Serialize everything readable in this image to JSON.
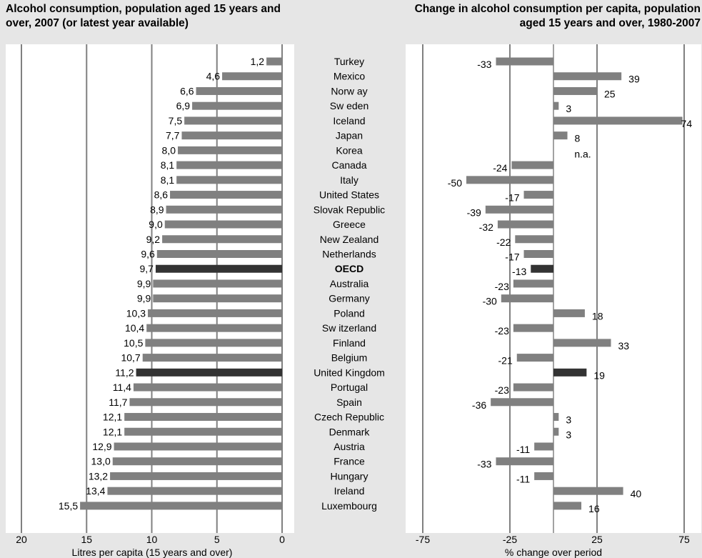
{
  "chart_data": [
    {
      "type": "bar",
      "orientation": "horizontal",
      "title": "Alcohol consumption, population aged 15 years and over, 2007 (or latest year available)",
      "title_lines": [
        "Alcohol consumption, population aged 15 years and",
        "over, 2007 (or latest year available)"
      ],
      "xlabel": "Litres per capita (15 years and over)",
      "xlim": [
        20,
        0
      ],
      "x_ticks": [
        "20",
        "15",
        "10",
        "5",
        "0"
      ],
      "grid": "vertical",
      "categories": [
        "Turkey",
        "Mexico",
        "Norw ay",
        "Sw eden",
        "Iceland",
        "Japan",
        "Korea",
        "Canada",
        "Italy",
        "United States",
        "Slovak Republic",
        "Greece",
        "New Zealand",
        "Netherlands",
        "OECD",
        "Australia",
        "Germany",
        "Poland",
        "Sw itzerland",
        "Finland",
        "Belgium",
        "United Kingdom",
        "Portugal",
        "Spain",
        "Czech Republic",
        "Denmark",
        "Austria",
        "France",
        "Hungary",
        "Ireland",
        "Luxembourg"
      ],
      "values": [
        1.2,
        4.6,
        6.6,
        6.9,
        7.5,
        7.7,
        8.0,
        8.1,
        8.1,
        8.6,
        8.9,
        9.0,
        9.2,
        9.6,
        9.7,
        9.9,
        9.9,
        10.3,
        10.4,
        10.5,
        10.7,
        11.2,
        11.4,
        11.7,
        12.1,
        12.1,
        12.9,
        13.0,
        13.2,
        13.4,
        15.5
      ],
      "value_labels": [
        "1,2",
        "4,6",
        "6,6",
        "6,9",
        "7,5",
        "7,7",
        "8,0",
        "8,1",
        "8,1",
        "8,6",
        "8,9",
        "9,0",
        "9,2",
        "9,6",
        "9,7",
        "9,9",
        "9,9",
        "10,3",
        "10,4",
        "10,5",
        "10,7",
        "11,2",
        "11,4",
        "11,7",
        "12,1",
        "12,1",
        "12,9",
        "13,0",
        "13,2",
        "13,4",
        "15,5"
      ],
      "highlighted": [
        "OECD",
        "United Kingdom"
      ]
    },
    {
      "type": "bar",
      "orientation": "horizontal",
      "title": "Change in alcohol consumption per capita, population aged 15 years and over, 1980-2007",
      "title_lines": [
        "Change in alcohol consumption per capita, population",
        "aged 15 years and over, 1980-2007"
      ],
      "xlabel": "% change over period",
      "xlim": [
        -75,
        75
      ],
      "x_ticks": [
        "-75",
        "-25",
        "25",
        "75"
      ],
      "grid": "vertical",
      "categories": [
        "Turkey",
        "Mexico",
        "Norw ay",
        "Sw eden",
        "Iceland",
        "Japan",
        "Korea",
        "Canada",
        "Italy",
        "United States",
        "Slovak Republic",
        "Greece",
        "New Zealand",
        "Netherlands",
        "OECD",
        "Australia",
        "Germany",
        "Poland",
        "Sw itzerland",
        "Finland",
        "Belgium",
        "United Kingdom",
        "Portugal",
        "Spain",
        "Czech Republic",
        "Denmark",
        "Austria",
        "France",
        "Hungary",
        "Ireland",
        "Luxembourg"
      ],
      "values": [
        -33,
        39,
        25,
        3,
        74,
        8,
        null,
        -24,
        -50,
        -17,
        -39,
        -32,
        -22,
        -17,
        -13,
        -23,
        -30,
        18,
        -23,
        33,
        -21,
        19,
        -23,
        -36,
        3,
        3,
        -11,
        -33,
        -11,
        40,
        16
      ],
      "value_labels": [
        "-33",
        "39",
        "25",
        "3",
        "74",
        "8",
        "n.a.",
        "-24",
        "-50",
        "-17",
        "-39",
        "-32",
        "-22",
        "-17",
        "-13",
        "-23",
        "-30",
        "18",
        "-23",
        "33",
        "-21",
        "19",
        "-23",
        "-36",
        "3",
        "3",
        "-11",
        "-33",
        "-11",
        "40",
        "16"
      ],
      "highlighted": [
        "OECD",
        "United Kingdom"
      ]
    }
  ],
  "colors": {
    "bar": "#808080",
    "highlight": "#333333",
    "plot_bg": "#ffffff",
    "page_bg": "#e6e6e6",
    "gridline": "#808080"
  }
}
